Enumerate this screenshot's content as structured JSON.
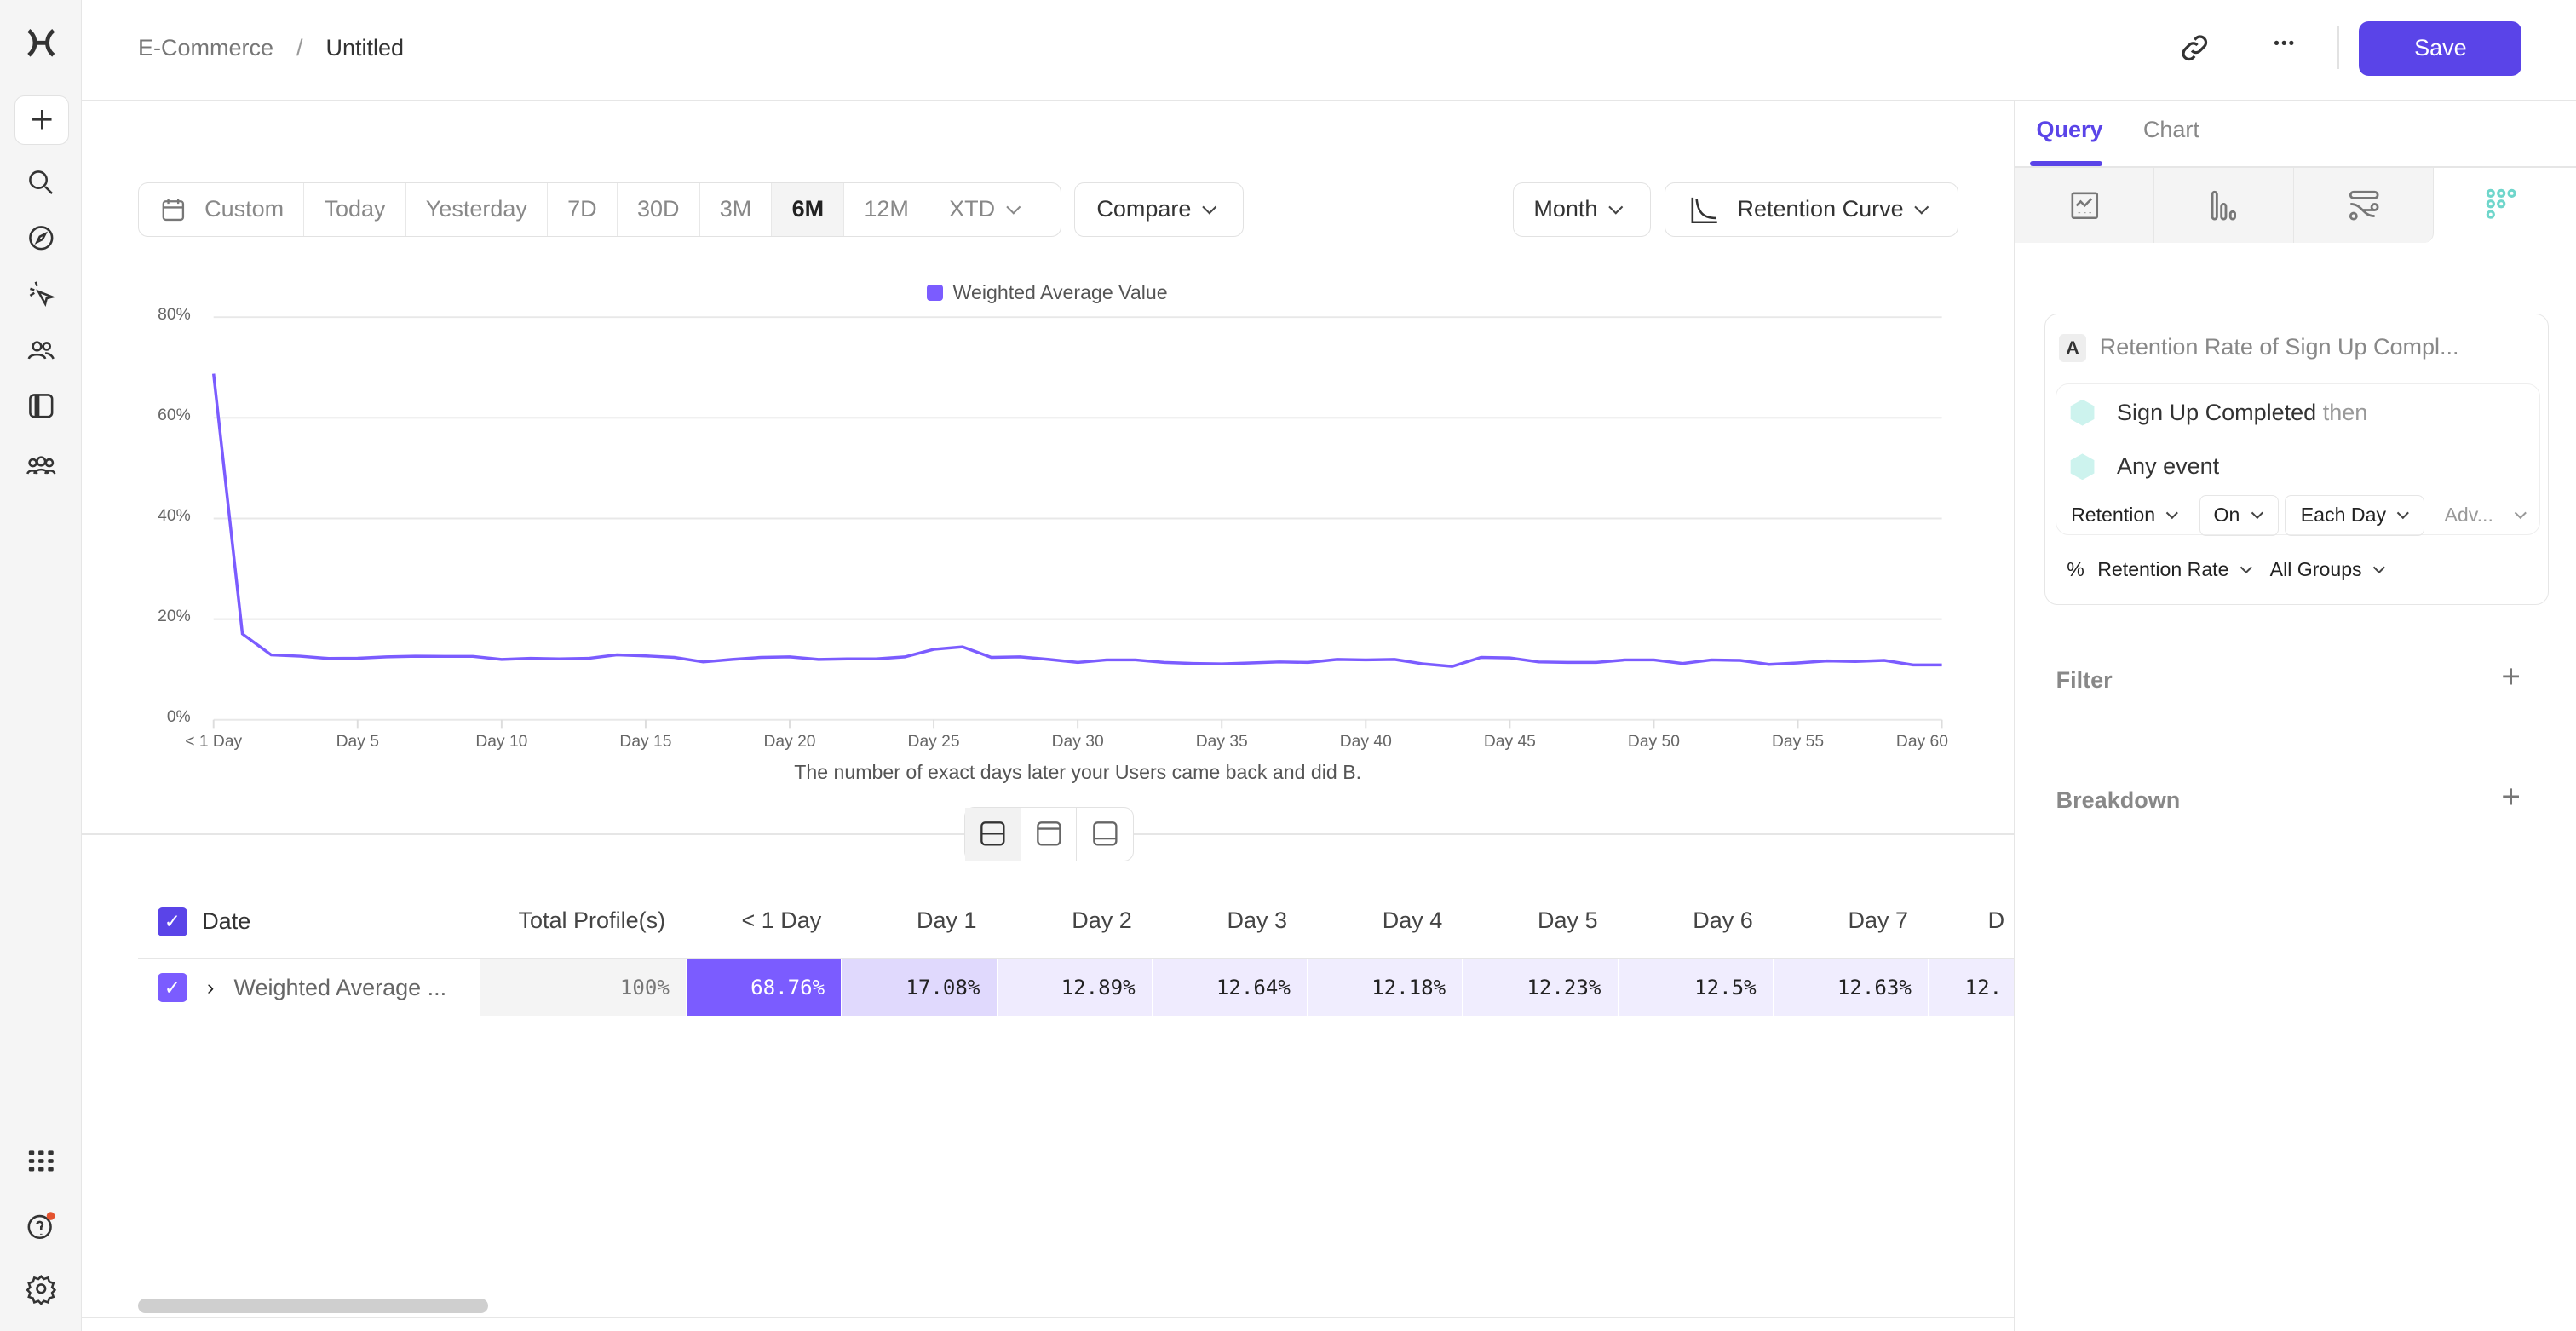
{
  "header": {
    "breadcrumb": [
      "E-Commerce",
      "Untitled"
    ],
    "separator": "/",
    "save_label": "Save",
    "more_label": "•••"
  },
  "toolbar": {
    "date_ranges": [
      "Custom",
      "Today",
      "Yesterday",
      "7D",
      "30D",
      "3M",
      "6M",
      "12M",
      "XTD"
    ],
    "active_range": "6M",
    "compare_label": "Compare",
    "interval_label": "Month",
    "chart_type_label": "Retention Curve"
  },
  "colors": {
    "accent": "#5a44e8",
    "series": "#7b5cff",
    "teal": "#6fd6cb"
  },
  "chart_data": {
    "type": "line",
    "legend": [
      "Weighted Average Value"
    ],
    "legend_position": "top",
    "xlabel": "The number of exact days later your Users came back and did B.",
    "ylabel": "",
    "ylim": [
      0,
      80
    ],
    "yticks": [
      "0%",
      "20%",
      "40%",
      "60%",
      "80%"
    ],
    "xticks": [
      "< 1 Day",
      "Day 5",
      "Day 10",
      "Day 15",
      "Day 20",
      "Day 25",
      "Day 30",
      "Day 35",
      "Day 40",
      "Day 45",
      "Day 50",
      "Day 55",
      "Day 60"
    ],
    "grid": true,
    "series": [
      {
        "name": "Weighted Average Value",
        "x_days": [
          0,
          1,
          2,
          3,
          4,
          5,
          6,
          7,
          8,
          9,
          10,
          11,
          12,
          13,
          14,
          15,
          16,
          17,
          18,
          19,
          20,
          21,
          22,
          23,
          24,
          25,
          26,
          27,
          28,
          29,
          30,
          31,
          32,
          33,
          34,
          35,
          36,
          37,
          38,
          39,
          40,
          41,
          42,
          43,
          44,
          45,
          46,
          47,
          48,
          49,
          50,
          51,
          52,
          53,
          54,
          55,
          56,
          57,
          58,
          59,
          60
        ],
        "values": [
          68.76,
          17.08,
          12.89,
          12.64,
          12.18,
          12.23,
          12.5,
          12.63,
          12.6,
          12.6,
          12.0,
          12.2,
          12.1,
          12.2,
          12.9,
          12.7,
          12.4,
          11.5,
          12.0,
          12.4,
          12.5,
          12.0,
          12.1,
          12.1,
          12.5,
          14.0,
          14.5,
          12.4,
          12.5,
          12.0,
          11.4,
          11.9,
          11.9,
          11.4,
          11.2,
          11.1,
          11.3,
          11.5,
          11.4,
          12.0,
          11.9,
          12.0,
          11.1,
          10.6,
          12.4,
          12.3,
          11.5,
          11.4,
          11.4,
          11.9,
          11.9,
          11.2,
          11.9,
          11.8,
          11.0,
          11.3,
          11.7,
          11.6,
          11.8,
          10.9,
          10.9
        ]
      }
    ]
  },
  "table": {
    "headers": [
      "Date",
      "Total Profile(s)",
      "< 1 Day",
      "Day 1",
      "Day 2",
      "Day 3",
      "Day 4",
      "Day 5",
      "Day 6",
      "Day 7",
      "D"
    ],
    "row": {
      "label": "Weighted Average ...",
      "total": "100%",
      "cells": [
        "68.76%",
        "17.08%",
        "12.89%",
        "12.64%",
        "12.18%",
        "12.23%",
        "12.5%",
        "12.63%",
        "12."
      ]
    }
  },
  "panel": {
    "tabs": [
      "Query",
      "Chart"
    ],
    "active_tab": "Query",
    "metric_letter": "A",
    "metric_title": "Retention Rate of Sign Up Compl...",
    "event_1": "Sign Up Completed",
    "then": "then",
    "event_2": "Any event",
    "options": [
      "Retention",
      "On",
      "Each Day",
      "Adv..."
    ],
    "percent": "%",
    "measure": "Retention Rate",
    "groups": "All Groups",
    "filter": "Filter",
    "breakdown": "Breakdown"
  }
}
